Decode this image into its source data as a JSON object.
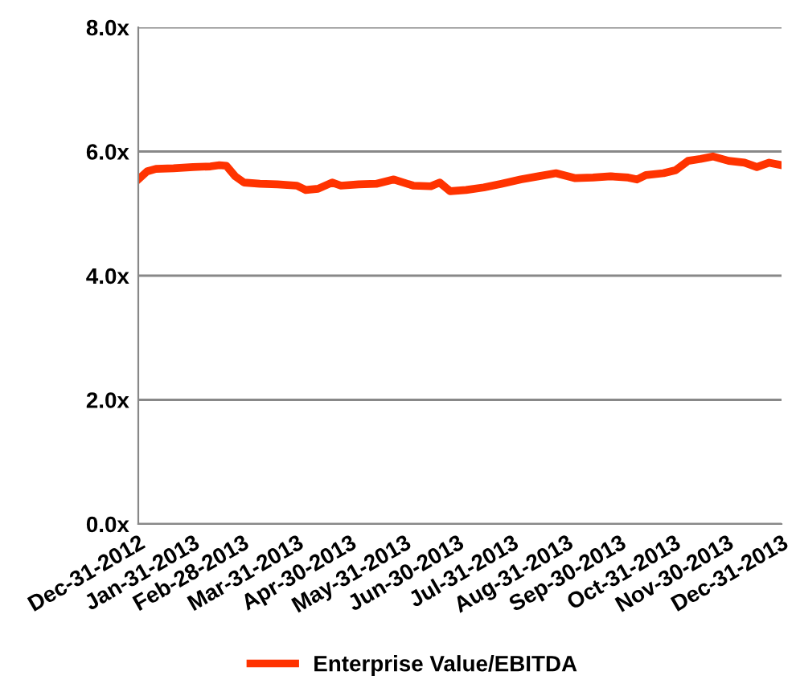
{
  "chart_data": {
    "type": "line",
    "x": [
      "2012-12-31",
      "2013-01-05",
      "2013-01-10",
      "2013-01-20",
      "2013-01-31",
      "2013-02-10",
      "2013-02-15",
      "2013-02-19",
      "2013-02-24",
      "2013-03-01",
      "2013-03-10",
      "2013-03-20",
      "2013-03-31",
      "2013-04-05",
      "2013-04-12",
      "2013-04-20",
      "2013-04-25",
      "2013-05-05",
      "2013-05-15",
      "2013-05-25",
      "2013-06-05",
      "2013-06-15",
      "2013-06-20",
      "2013-06-26",
      "2013-07-05",
      "2013-07-15",
      "2013-07-25",
      "2013-08-05",
      "2013-08-15",
      "2013-08-25",
      "2013-09-05",
      "2013-09-15",
      "2013-09-25",
      "2013-10-05",
      "2013-10-10",
      "2013-10-15",
      "2013-10-25",
      "2013-11-01",
      "2013-11-08",
      "2013-11-15",
      "2013-11-22",
      "2013-12-01",
      "2013-12-10",
      "2013-12-17",
      "2013-12-24",
      "2013-12-31"
    ],
    "series": [
      {
        "name": "Enterprise Value/EBITDA",
        "color": "#ff3300",
        "values": [
          5.55,
          5.68,
          5.72,
          5.73,
          5.75,
          5.76,
          5.78,
          5.77,
          5.6,
          5.5,
          5.48,
          5.47,
          5.45,
          5.38,
          5.4,
          5.5,
          5.45,
          5.47,
          5.48,
          5.55,
          5.45,
          5.44,
          5.5,
          5.36,
          5.38,
          5.42,
          5.48,
          5.55,
          5.6,
          5.65,
          5.57,
          5.58,
          5.6,
          5.58,
          5.55,
          5.62,
          5.65,
          5.7,
          5.85,
          5.88,
          5.92,
          5.85,
          5.82,
          5.75,
          5.82,
          5.78
        ]
      }
    ],
    "xlim": [
      "2012-12-31",
      "2013-12-31"
    ],
    "xticks": [
      {
        "value": "2012-12-31",
        "label": "Dec-31-2012"
      },
      {
        "value": "2013-01-31",
        "label": "Jan-31-2013"
      },
      {
        "value": "2013-02-28",
        "label": "Feb-28-2013"
      },
      {
        "value": "2013-03-31",
        "label": "Mar-31-2013"
      },
      {
        "value": "2013-04-30",
        "label": "Apr-30-2013"
      },
      {
        "value": "2013-05-31",
        "label": "May-31-2013"
      },
      {
        "value": "2013-06-30",
        "label": "Jun-30-2013"
      },
      {
        "value": "2013-07-31",
        "label": "Jul-31-2013"
      },
      {
        "value": "2013-08-31",
        "label": "Aug-31-2013"
      },
      {
        "value": "2013-09-30",
        "label": "Sep-30-2013"
      },
      {
        "value": "2013-10-31",
        "label": "Oct-31-2013"
      },
      {
        "value": "2013-11-30",
        "label": "Nov-30-2013"
      },
      {
        "value": "2013-12-31",
        "label": "Dec-31-2013"
      }
    ],
    "ylim": [
      0,
      8
    ],
    "yticks": [
      {
        "value": 0,
        "label": "0.0x"
      },
      {
        "value": 2,
        "label": "2.0x"
      },
      {
        "value": 4,
        "label": "4.0x"
      },
      {
        "value": 6,
        "label": "6.0x"
      },
      {
        "value": 8,
        "label": "8.0x"
      }
    ],
    "grid": "y",
    "legend": "bottom",
    "marker": "none",
    "line_style": "solid"
  }
}
